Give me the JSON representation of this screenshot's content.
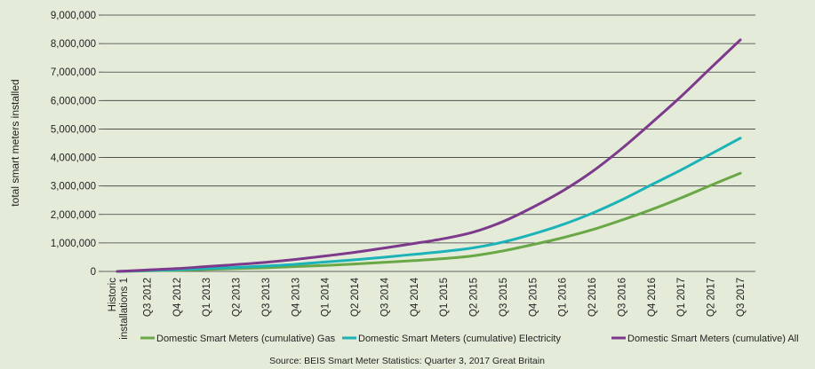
{
  "chart_data": {
    "type": "line",
    "xlabel": "",
    "ylabel": "total smart meters installed",
    "ylim": [
      0,
      9000000
    ],
    "yticks": [
      "0",
      "1,000,000",
      "2,000,000",
      "3,000,000",
      "4,000,000",
      "5,000,000",
      "6,000,000",
      "7,000,000",
      "8,000,000",
      "9,000,000"
    ],
    "grid": true,
    "legend_position": "bottom",
    "categories": [
      "Historic installations 1",
      "Q3 2012",
      "Q4 2012",
      "Q1 2013",
      "Q2 2013",
      "Q3 2013",
      "Q4 2013",
      "Q1 2014",
      "Q2 2014",
      "Q3 2014",
      "Q4 2014",
      "Q1 2015",
      "Q2 2015",
      "Q3 2015",
      "Q4 2015",
      "Q1 2016",
      "Q2 2016",
      "Q3 2016",
      "Q4 2016",
      "Q1 2017",
      "Q2 2017",
      "Q3 2017"
    ],
    "series": [
      {
        "name": "Domestic Smart Meters (cumulative) Gas",
        "color": "#6aa746",
        "values": [
          0,
          20000,
          40000,
          70000,
          100000,
          130000,
          170000,
          210000,
          260000,
          320000,
          380000,
          450000,
          550000,
          720000,
          940000,
          1180000,
          1460000,
          1800000,
          2170000,
          2580000,
          3020000,
          3450000
        ]
      },
      {
        "name": "Domestic Smart Meters (cumulative) Electricity",
        "color": "#1bb3b7",
        "values": [
          0,
          30000,
          60000,
          100000,
          140000,
          190000,
          250000,
          330000,
          410000,
          500000,
          600000,
          700000,
          830000,
          1030000,
          1310000,
          1640000,
          2040000,
          2510000,
          3040000,
          3560000,
          4120000,
          4680000
        ]
      },
      {
        "name": "Domestic Smart Meters (cumulative) All",
        "color": "#7d3a8c",
        "values": [
          0,
          50000,
          100000,
          170000,
          240000,
          320000,
          420000,
          540000,
          670000,
          820000,
          980000,
          1150000,
          1380000,
          1750000,
          2250000,
          2820000,
          3500000,
          4310000,
          5210000,
          6140000,
          7140000,
          8130000
        ]
      }
    ],
    "source": "Source: BEIS Smart Meter Statistics: Quarter 3, 2017 Great Britain"
  }
}
